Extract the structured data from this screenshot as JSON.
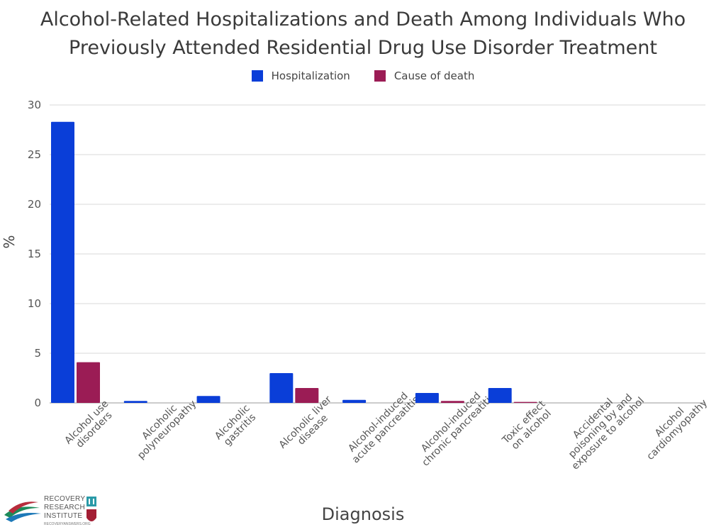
{
  "chart_data": {
    "type": "bar",
    "title": [
      "Alcohol-Related Hospitalizations and Death Among Individuals Who",
      "Previously Attended Residential Drug Use Disorder Treatment"
    ],
    "xlabel": "Diagnosis",
    "ylabel": "%",
    "ylim": [
      0,
      30
    ],
    "yticks": [
      "0",
      "5",
      "10",
      "15",
      "20",
      "25",
      "30"
    ],
    "grid": true,
    "legend_position": "top",
    "categories": [
      [
        "Alcohol use",
        "disorders"
      ],
      [
        "Alcoholic",
        "polyneuropathy"
      ],
      [
        "Alcoholic",
        "gastritis"
      ],
      [
        "Alcoholic liver",
        "disease"
      ],
      [
        "Alcohol-induced",
        "acute pancreatitis"
      ],
      [
        "Alcohol-induced",
        "chronic pancreatitis"
      ],
      [
        "Toxic effect",
        "on alcohol"
      ],
      [
        "Accidental",
        "poisoning by and",
        "exposure to alcohol"
      ],
      [
        "Alcohol",
        "cardiomyopathy"
      ]
    ],
    "series": [
      {
        "name": "Hospitalization",
        "color": "#0a3ed8",
        "values": [
          28.3,
          0.2,
          0.7,
          3.0,
          0.3,
          1.0,
          1.5,
          0,
          0
        ]
      },
      {
        "name": "Cause of death",
        "color": "#9b1c55",
        "values": [
          4.1,
          0,
          0,
          1.5,
          0,
          0.2,
          0.1,
          0,
          0
        ]
      }
    ]
  },
  "logo": {
    "lines": [
      "RECOVERY",
      "RESEARCH",
      "INSTITUTE"
    ],
    "url": "RECOVERYANSWERS.ORG"
  }
}
